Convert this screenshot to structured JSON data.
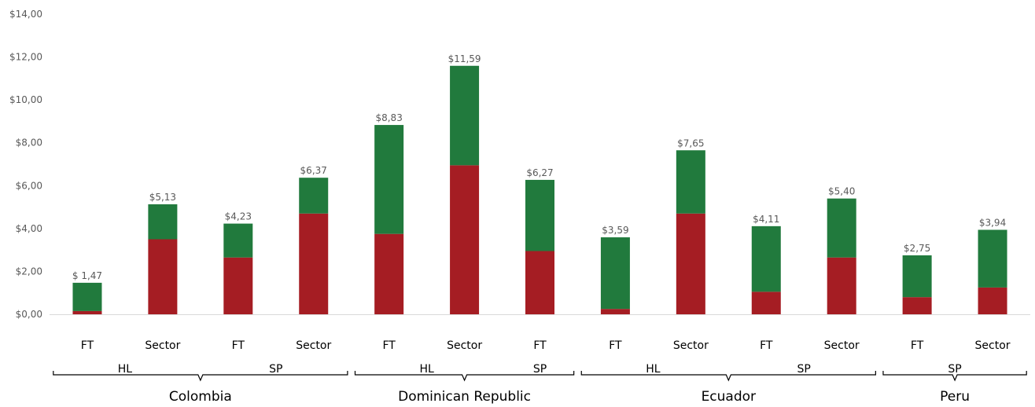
{
  "chart_data": {
    "type": "bar",
    "stacked": true,
    "ylim": [
      0,
      14
    ],
    "y_ticks": [
      "$0,00",
      "$2,00",
      "$4,00",
      "$6,00",
      "$8,00",
      "$10,00",
      "$12,00",
      "$14,00"
    ],
    "categories": [
      "FT",
      "Sector",
      "FT",
      "Sector",
      "FT",
      "Sector",
      "FT",
      "FT",
      "Sector",
      "FT",
      "Sector",
      "FT",
      "Sector"
    ],
    "groups": [
      "HL",
      "HL",
      "SP",
      "SP",
      "HL",
      "HL",
      "SP",
      "HL",
      "HL",
      "SP",
      "SP",
      "SP",
      "SP"
    ],
    "countries": [
      "Colombia",
      "Colombia",
      "Colombia",
      "Colombia",
      "Dominican Republic",
      "Dominican Republic",
      "Dominican Republic",
      "Ecuador",
      "Ecuador",
      "Ecuador",
      "Ecuador",
      "Peru",
      "Peru"
    ],
    "series": [
      {
        "color": "#a51d23",
        "values": [
          0.15,
          3.5,
          2.65,
          4.7,
          3.75,
          6.95,
          2.95,
          0.25,
          4.7,
          1.05,
          2.65,
          0.8,
          1.25
        ]
      },
      {
        "color": "#217a3d",
        "values": [
          1.32,
          1.63,
          1.58,
          1.67,
          5.08,
          4.64,
          3.32,
          3.34,
          2.95,
          3.06,
          2.75,
          1.95,
          2.69
        ]
      }
    ],
    "totals": [
      1.47,
      5.13,
      4.23,
      6.37,
      8.83,
      11.59,
      6.27,
      3.59,
      7.65,
      4.11,
      5.4,
      2.75,
      3.94
    ],
    "total_labels": [
      "$ 1,47",
      "$5,13",
      "$4,23",
      "$6,37",
      "$8,83",
      "$11,59",
      "$6,27",
      "$3,59",
      "$7,65",
      "$4,11",
      "$5,40",
      "$2,75",
      "$3,94"
    ],
    "group_labels": [
      {
        "label": "HL",
        "country": "Colombia"
      },
      {
        "label": "SP",
        "country": "Colombia"
      },
      {
        "label": "HL",
        "country": "Dominican Republic"
      },
      {
        "label": "SP",
        "country": "Dominican Republic"
      },
      {
        "label": "HL",
        "country": "Ecuador"
      },
      {
        "label": "SP",
        "country": "Ecuador"
      },
      {
        "label": "SP",
        "country": "Peru"
      }
    ],
    "country_labels": [
      "Colombia",
      "Dominican Republic",
      "Ecuador",
      "Peru"
    ],
    "grid": false,
    "legend": "none"
  }
}
